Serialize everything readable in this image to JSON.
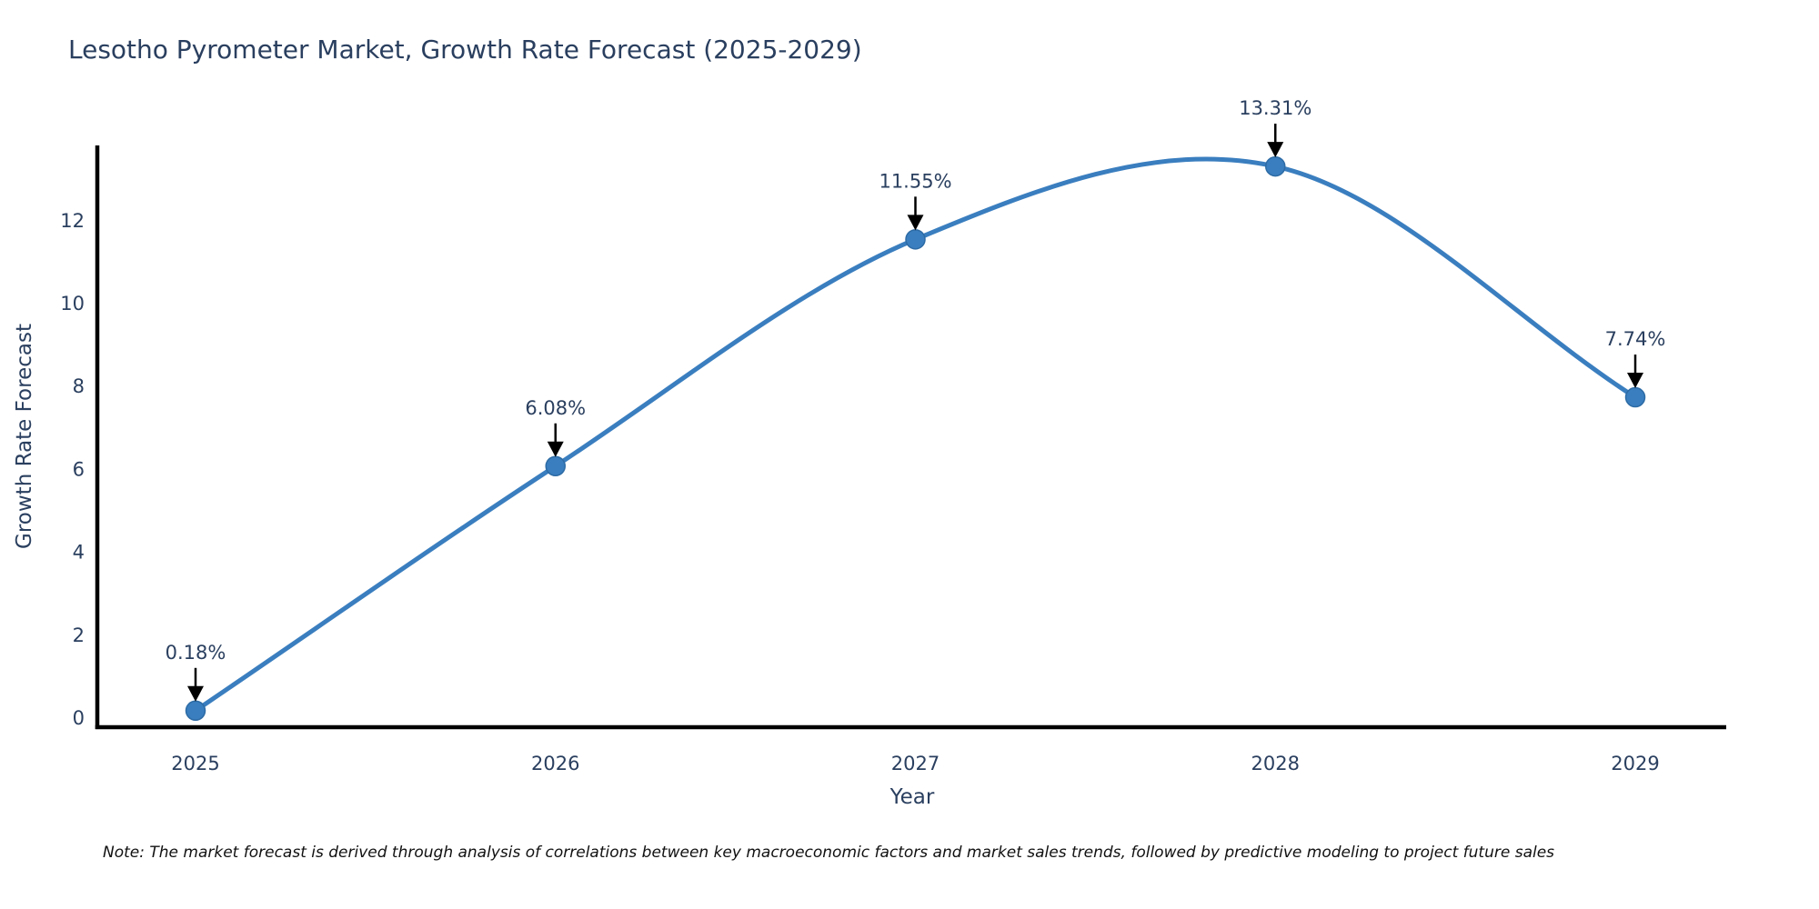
{
  "title": "Lesotho Pyrometer Market, Growth Rate Forecast (2025-2029)",
  "note": "Note: The market forecast is derived through analysis of correlations between key macroeconomic factors and market sales trends, followed by predictive modeling to project future sales",
  "chart_data": {
    "type": "line",
    "title": "Lesotho Pyrometer Market, Growth Rate Forecast (2025-2029)",
    "xlabel": "Year",
    "ylabel": "Growth Rate Forecast",
    "categories": [
      "2025",
      "2026",
      "2027",
      "2028",
      "2029"
    ],
    "values": [
      0.18,
      6.08,
      11.55,
      13.31,
      7.74
    ],
    "point_labels": [
      "0.18%",
      "6.08%",
      "11.55%",
      "13.31%",
      "7.74%"
    ],
    "y_ticks": [
      0,
      2,
      4,
      6,
      8,
      10,
      12
    ],
    "ylim": [
      0,
      14
    ],
    "grid": false,
    "legend_position": "none",
    "line_color": "#3a7ebf",
    "marker_color": "#3a7ebf",
    "marker_edge_color": "#2d6ba5",
    "axis_color": "#000000",
    "arrow_color": "#000000",
    "text_color": "#2a3f5f",
    "note_color": "#111111"
  }
}
